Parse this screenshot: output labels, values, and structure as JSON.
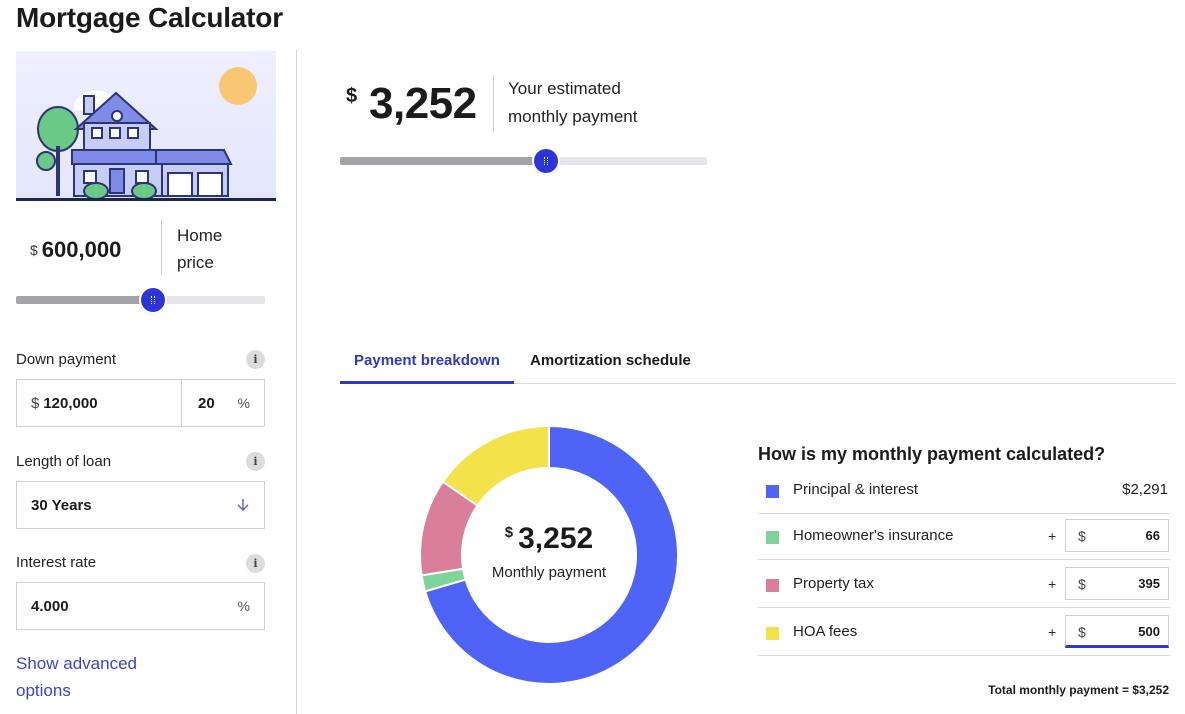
{
  "page_title": "Mortgage Calculator",
  "home_price": {
    "currency": "$",
    "value": "600,000",
    "label": "Home price",
    "slider_fraction": 0.55
  },
  "down_payment": {
    "label": "Down payment",
    "currency": "$",
    "value": "120,000",
    "percent": "20",
    "percent_suffix": "%"
  },
  "loan_length": {
    "label": "Length of loan",
    "value": "30 Years"
  },
  "interest_rate": {
    "label": "Interest rate",
    "value": "4.000",
    "suffix": "%"
  },
  "info_icon_glyph": "i",
  "advanced_link": "Show advanced options",
  "estimate": {
    "currency": "$",
    "value": "3,252",
    "label": "Your estimated monthly payment",
    "slider_fraction": 0.56
  },
  "tabs": [
    {
      "label": "Payment breakdown",
      "active": true
    },
    {
      "label": "Amortization schedule",
      "active": false
    }
  ],
  "donut": {
    "currency": "$",
    "value": "3,252",
    "label": "Monthly payment"
  },
  "breakdown": {
    "title": "How is my monthly payment calculated?",
    "rows": [
      {
        "name": "Principal & interest",
        "amount": "$2,291",
        "value": 2291,
        "color": "#4f63f6",
        "editable": false
      },
      {
        "name": "Homeowner's insurance",
        "plus": "+",
        "currency": "$",
        "amount": "66",
        "value": 66,
        "color": "#7fd49b",
        "editable": true
      },
      {
        "name": "Property tax",
        "plus": "+",
        "currency": "$",
        "amount": "395",
        "value": 395,
        "color": "#d97f9b",
        "editable": true
      },
      {
        "name": "HOA fees",
        "plus": "+",
        "currency": "$",
        "amount": "500",
        "value": 500,
        "color": "#f3e24a",
        "editable": true
      }
    ],
    "total": "Total monthly payment = $3,252"
  },
  "colors": {
    "accent": "#2f39c7",
    "link": "#3b45c2",
    "navy": "#1f2458"
  }
}
